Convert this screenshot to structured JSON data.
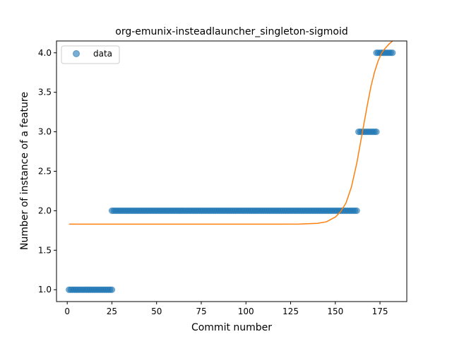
{
  "chart_data": {
    "type": "scatter",
    "title": "org-emunix-insteadlauncher_singleton-sigmoid",
    "xlabel": "Commit number",
    "ylabel": "Number of instance of a feature",
    "xlim": [
      -6,
      190
    ],
    "ylim": [
      0.85,
      4.15
    ],
    "xticks": [
      0,
      25,
      50,
      75,
      100,
      125,
      150,
      175
    ],
    "yticks": [
      1.0,
      1.5,
      2.0,
      2.5,
      3.0,
      3.5,
      4.0
    ],
    "xtick_labels": [
      "0",
      "25",
      "50",
      "75",
      "100",
      "125",
      "150",
      "175"
    ],
    "ytick_labels": [
      "1.0",
      "1.5",
      "2.0",
      "2.5",
      "3.0",
      "3.5",
      "4.0"
    ],
    "legend": {
      "placement": "top-left",
      "entries": [
        "data"
      ]
    },
    "grid": false,
    "series": [
      {
        "name": "data",
        "kind": "points",
        "color": "#1f77b4",
        "segments": [
          {
            "x_from": 1,
            "x_to": 25,
            "y": 1.0
          },
          {
            "x_from": 25,
            "x_to": 162,
            "y": 2.0
          },
          {
            "x_from": 163,
            "x_to": 173,
            "y": 3.0
          },
          {
            "x_from": 173,
            "x_to": 182,
            "y": 4.0
          }
        ]
      },
      {
        "kind": "line",
        "color": "#ff7f0e",
        "x": [
          1,
          20,
          40,
          60,
          80,
          100,
          120,
          130,
          140,
          145,
          150,
          153,
          156,
          159,
          162,
          164,
          166,
          168,
          170,
          172,
          174,
          176,
          178,
          180,
          182
        ],
        "y": [
          1.83,
          1.83,
          1.83,
          1.83,
          1.83,
          1.83,
          1.83,
          1.831,
          1.84,
          1.86,
          1.92,
          1.99,
          2.1,
          2.3,
          2.6,
          2.85,
          3.1,
          3.35,
          3.58,
          3.76,
          3.9,
          4.0,
          4.06,
          4.11,
          4.15
        ]
      }
    ]
  }
}
